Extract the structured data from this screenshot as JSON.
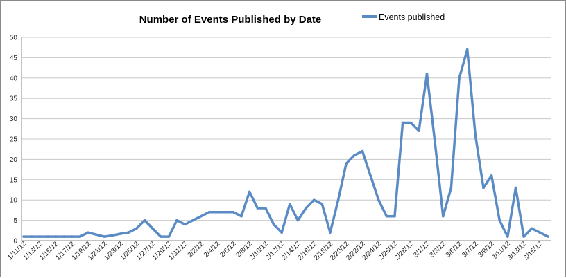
{
  "chart_data": {
    "type": "line",
    "title": "Number of Events Published by Date",
    "xlabel": "",
    "ylabel": "",
    "ylim": [
      0,
      50
    ],
    "yticks": [
      0,
      5,
      10,
      15,
      20,
      25,
      30,
      35,
      40,
      45,
      50
    ],
    "grid": true,
    "legend_position": "top-right",
    "x": [
      "1/11/12",
      "1/12/12",
      "1/13/12",
      "1/14/12",
      "1/15/12",
      "1/16/12",
      "1/17/12",
      "1/18/12",
      "1/19/12",
      "1/20/12",
      "1/21/12",
      "1/22/12",
      "1/23/12",
      "1/24/12",
      "1/25/12",
      "1/26/12",
      "1/27/12",
      "1/28/12",
      "1/29/12",
      "1/30/12",
      "1/31/12",
      "2/1/12",
      "2/2/12",
      "2/3/12",
      "2/4/12",
      "2/5/12",
      "2/6/12",
      "2/7/12",
      "2/8/12",
      "2/9/12",
      "2/10/12",
      "2/11/12",
      "2/12/12",
      "2/13/12",
      "2/14/12",
      "2/15/12",
      "2/16/12",
      "2/17/12",
      "2/18/12",
      "2/19/12",
      "2/20/12",
      "2/21/12",
      "2/22/12",
      "2/23/12",
      "2/24/12",
      "2/25/12",
      "2/26/12",
      "2/27/12",
      "2/28/12",
      "2/29/12",
      "3/1/12",
      "3/2/12",
      "3/3/12",
      "3/4/12",
      "3/5/12",
      "3/6/12",
      "3/7/12",
      "3/8/12",
      "3/9/12",
      "3/10/12",
      "3/11/12",
      "3/12/12",
      "3/13/12",
      "3/14/12",
      "3/15/12",
      "3/16/12"
    ],
    "x_tick_labels": [
      "1/11/12",
      "1/13/12",
      "1/15/12",
      "1/17/12",
      "1/19/12",
      "1/21/12",
      "1/23/12",
      "1/25/12",
      "1/27/12",
      "1/29/12",
      "1/31/12",
      "2/2/12",
      "2/4/12",
      "2/6/12",
      "2/8/12",
      "2/10/12",
      "2/12/12",
      "2/14/12",
      "2/16/12",
      "2/18/12",
      "2/20/12",
      "2/22/12",
      "2/24/12",
      "2/26/12",
      "2/28/12",
      "3/1/12",
      "3/3/12",
      "3/5/12",
      "3/7/12",
      "3/9/12",
      "3/11/12",
      "3/13/12",
      "3/15/12"
    ],
    "series": [
      {
        "name": "Events published",
        "color": "#5b8bc4",
        "values": [
          1,
          1,
          1,
          1,
          1,
          1,
          1,
          1,
          2,
          1.5,
          1,
          1.3,
          1.7,
          2,
          3,
          5,
          3,
          1,
          1,
          5,
          4,
          5,
          6,
          7,
          7,
          7,
          7,
          6,
          12,
          8,
          8,
          4,
          2,
          9,
          5,
          8,
          10,
          9,
          2,
          10,
          19,
          21,
          22,
          16,
          10,
          6,
          6,
          29,
          29,
          27,
          41,
          24,
          6,
          13,
          40,
          47,
          26,
          13,
          16,
          5,
          1,
          13,
          1,
          3,
          2,
          1
        ]
      }
    ]
  }
}
